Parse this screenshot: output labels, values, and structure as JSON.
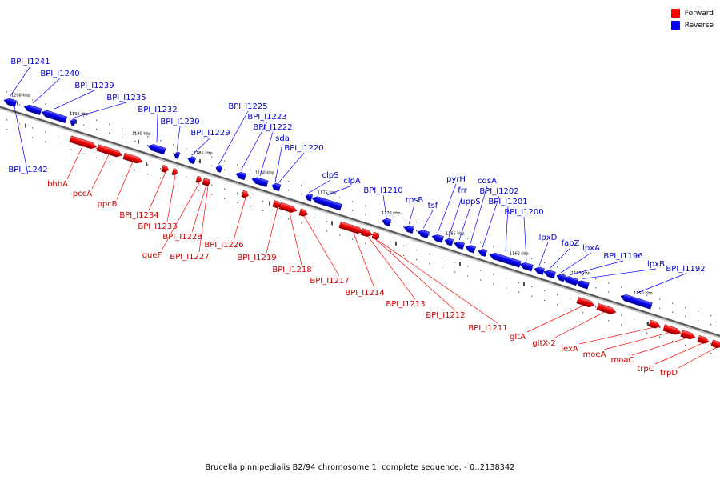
{
  "legend": {
    "forward_label": "Forward",
    "reverse_label": "Reverse",
    "forward_color": "#ff0000",
    "reverse_color": "#0000ff"
  },
  "caption": "Brucella pinnipedialis B2/94 chromosome 1, complete sequence. - 0..2138342",
  "scale_labels": [
    "1200 kbp",
    "1195 kbp",
    "1190 kbp",
    "1185 kbp",
    "1180 kbp",
    "1175 kbp",
    "1170 kbp",
    "1165 kbp",
    "1160 kbp",
    "1155 kbp",
    "1150 kbp"
  ],
  "reverse_genes": [
    "BPI_I1241",
    "BPI_I1240",
    "BPI_I1239",
    "BPI_I1235",
    "BPI_I1232",
    "BPI_I1230",
    "BPI_I1229",
    "BPI_I1242",
    "BPI_I1225",
    "BPI_I1223",
    "BPI_I1222",
    "sda",
    "BPI_I1220",
    "clpS",
    "clpA",
    "BPI_I1210",
    "rpsB",
    "tsf",
    "pyrH",
    "frr",
    "uppS",
    "cdsA",
    "BPI_I1202",
    "BPI_I1201",
    "BPI_I1200",
    "lpxD",
    "fabZ",
    "lpxA",
    "BPI_I1196",
    "lpxB",
    "BPI_I1192"
  ],
  "forward_genes": [
    "bhbA",
    "pccA",
    "ppcB",
    "BPI_I1234",
    "BPI_I1233",
    "queF",
    "BPI_I1228",
    "BPI_I1227",
    "BPI_I1226",
    "BPI_I1219",
    "BPI_I1218",
    "BPI_I1217",
    "BPI_I1214",
    "BPI_I1213",
    "BPI_I1212",
    "BPI_I1211",
    "gltA",
    "gltX-2",
    "lexA",
    "moeA",
    "moaC",
    "trpC",
    "trpD"
  ]
}
